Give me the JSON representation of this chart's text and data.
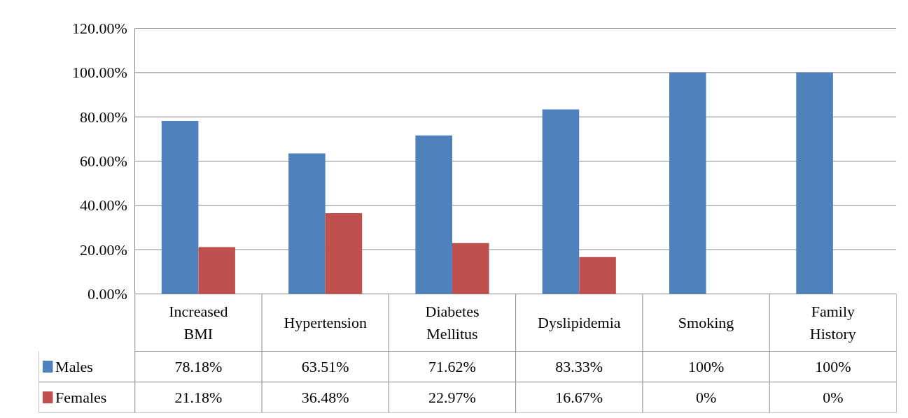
{
  "chart_data": {
    "type": "bar",
    "categories": [
      "Increased BMI",
      "Hypertension",
      "Diabetes Mellitus",
      "Dyslipidemia",
      "Smoking",
      "Family History"
    ],
    "series": [
      {
        "name": "Males",
        "color": "#4f81bd",
        "values": [
          78.18,
          63.51,
          71.62,
          83.33,
          100,
          100
        ],
        "value_labels": [
          "78.18%",
          "63.51%",
          "71.62%",
          "83.33%",
          "100%",
          "100%"
        ]
      },
      {
        "name": "Females",
        "color": "#c0504d",
        "values": [
          21.18,
          36.48,
          22.97,
          16.67,
          0,
          0
        ],
        "value_labels": [
          "21.18%",
          "36.48%",
          "22.97%",
          "16.67%",
          "0%",
          "0%"
        ]
      }
    ],
    "ylim": [
      0,
      120
    ],
    "yticks": [
      {
        "value": 0,
        "label": "0.00%"
      },
      {
        "value": 20,
        "label": "20.00%"
      },
      {
        "value": 40,
        "label": "40.00%"
      },
      {
        "value": 60,
        "label": "60.00%"
      },
      {
        "value": 80,
        "label": "80.00%"
      },
      {
        "value": 100,
        "label": "100.00%"
      },
      {
        "value": 120,
        "label": "120.00%"
      }
    ],
    "grid": "y",
    "legend": "bottom"
  }
}
